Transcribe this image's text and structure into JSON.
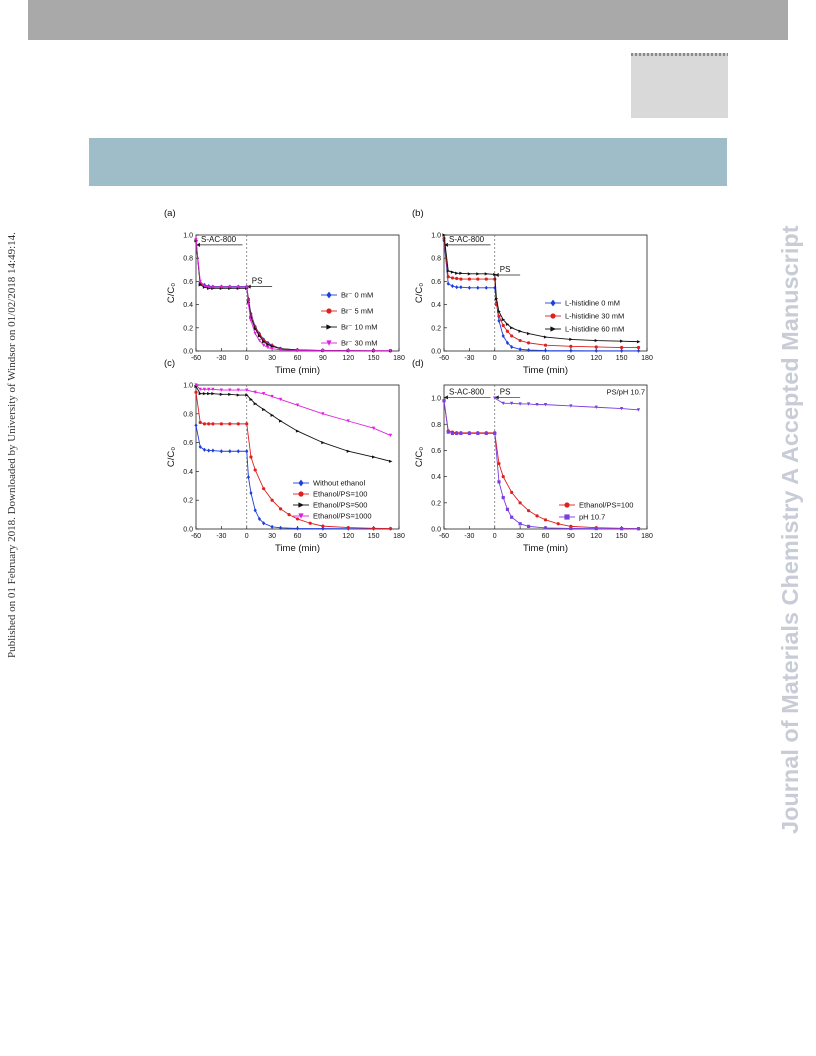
{
  "side_text": "Published on 01 February 2018. Downloaded by University of Windsor on 01/02/2018 14:49:14.",
  "watermark": "Journal of Materials Chemistry A Accepted Manuscript",
  "chart_data": [
    {
      "type": "line",
      "panel_label": "(a)",
      "xlabel": "Time (min)",
      "ylabel": "C/C₀",
      "xlim": [
        -60,
        180
      ],
      "ylim": [
        0,
        1.0
      ],
      "xticks": [
        -60,
        -30,
        0,
        30,
        60,
        90,
        120,
        150,
        180
      ],
      "yticks": [
        0.0,
        0.2,
        0.4,
        0.6,
        0.8,
        1.0
      ],
      "annotations": [
        {
          "text": "S-AC-800",
          "x1": -60,
          "x2": -5,
          "y": 0.915
        },
        {
          "text": "PS",
          "x1": 0,
          "x2": 30,
          "y": 0.555
        }
      ],
      "legend_position": "right",
      "series": [
        {
          "name": "Br⁻ 0 mM",
          "color": "#1f3fd9",
          "marker": "diamond",
          "x": [
            -60,
            -55,
            -50,
            -45,
            -40,
            -30,
            -20,
            -10,
            0,
            2,
            5,
            10,
            15,
            20,
            25,
            30,
            40,
            60,
            90,
            120,
            150,
            170
          ],
          "y": [
            0.95,
            0.59,
            0.57,
            0.56,
            0.555,
            0.555,
            0.555,
            0.555,
            0.555,
            0.45,
            0.32,
            0.21,
            0.15,
            0.1,
            0.07,
            0.05,
            0.02,
            0.01,
            0.005,
            0.003,
            0.002,
            0.002
          ]
        },
        {
          "name": "Br⁻ 5 mM",
          "color": "#e02020",
          "marker": "circle",
          "x": [
            -60,
            -55,
            -50,
            -45,
            -40,
            -30,
            -20,
            -10,
            0,
            2,
            5,
            10,
            15,
            20,
            25,
            30,
            40,
            60,
            90,
            120,
            150,
            170
          ],
          "y": [
            0.95,
            0.58,
            0.56,
            0.55,
            0.55,
            0.55,
            0.55,
            0.55,
            0.55,
            0.44,
            0.3,
            0.2,
            0.14,
            0.09,
            0.06,
            0.045,
            0.02,
            0.008,
            0.004,
            0.003,
            0.002,
            0.002
          ]
        },
        {
          "name": "Br⁻ 10 mM",
          "color": "#111111",
          "marker": "triangle-right",
          "x": [
            -60,
            -55,
            -50,
            -45,
            -40,
            -30,
            -20,
            -10,
            0,
            2,
            5,
            10,
            15,
            20,
            25,
            30,
            40,
            60,
            90,
            120,
            150,
            170
          ],
          "y": [
            0.95,
            0.57,
            0.55,
            0.54,
            0.54,
            0.54,
            0.54,
            0.54,
            0.54,
            0.42,
            0.29,
            0.19,
            0.13,
            0.08,
            0.055,
            0.04,
            0.02,
            0.008,
            0.004,
            0.003,
            0.002,
            0.002
          ]
        },
        {
          "name": "Br⁻ 30 mM",
          "color": "#e020e0",
          "marker": "triangle-down",
          "x": [
            -60,
            -55,
            -50,
            -45,
            -40,
            -30,
            -20,
            -10,
            0,
            2,
            5,
            10,
            15,
            20,
            25,
            30,
            40,
            60,
            90,
            120,
            150,
            170
          ],
          "y": [
            0.96,
            0.6,
            0.56,
            0.55,
            0.55,
            0.55,
            0.55,
            0.55,
            0.55,
            0.4,
            0.26,
            0.15,
            0.09,
            0.05,
            0.03,
            0.02,
            0.01,
            0.005,
            0.003,
            0.002,
            0.002,
            0.002
          ]
        }
      ]
    },
    {
      "type": "line",
      "panel_label": "(b)",
      "xlabel": "Time (min)",
      "ylabel": "C/C₀",
      "xlim": [
        -60,
        180
      ],
      "ylim": [
        0,
        1.0
      ],
      "xticks": [
        -60,
        -30,
        0,
        30,
        60,
        90,
        120,
        150,
        180
      ],
      "yticks": [
        0.0,
        0.2,
        0.4,
        0.6,
        0.8,
        1.0
      ],
      "annotations": [
        {
          "text": "S-AC-800",
          "x1": -60,
          "x2": -5,
          "y": 0.915
        },
        {
          "text": "PS",
          "x1": 0,
          "x2": 30,
          "y": 0.655
        }
      ],
      "legend_position": "bottom-right",
      "series": [
        {
          "name": "L-histidine 0 mM",
          "color": "#1f3fd9",
          "marker": "diamond",
          "x": [
            -60,
            -55,
            -50,
            -45,
            -40,
            -30,
            -20,
            -10,
            0,
            2,
            5,
            10,
            15,
            20,
            30,
            40,
            60,
            90,
            120,
            150,
            170
          ],
          "y": [
            0.95,
            0.58,
            0.56,
            0.55,
            0.55,
            0.545,
            0.545,
            0.545,
            0.545,
            0.42,
            0.26,
            0.13,
            0.07,
            0.035,
            0.015,
            0.008,
            0.004,
            0.003,
            0.002,
            0.002,
            0.002
          ]
        },
        {
          "name": "L-histidine 30 mM",
          "color": "#e02020",
          "marker": "circle",
          "x": [
            -60,
            -55,
            -50,
            -45,
            -40,
            -30,
            -20,
            -10,
            0,
            2,
            5,
            10,
            15,
            20,
            30,
            40,
            60,
            90,
            120,
            150,
            170
          ],
          "y": [
            0.97,
            0.64,
            0.63,
            0.625,
            0.62,
            0.62,
            0.62,
            0.62,
            0.62,
            0.4,
            0.3,
            0.22,
            0.17,
            0.13,
            0.09,
            0.07,
            0.05,
            0.04,
            0.035,
            0.03,
            0.03
          ]
        },
        {
          "name": "L-histidine 60 mM",
          "color": "#111111",
          "marker": "triangle-right",
          "x": [
            -60,
            -55,
            -50,
            -45,
            -40,
            -30,
            -20,
            -10,
            0,
            2,
            5,
            10,
            15,
            20,
            30,
            40,
            60,
            90,
            120,
            150,
            170
          ],
          "y": [
            1.0,
            0.69,
            0.68,
            0.67,
            0.67,
            0.665,
            0.665,
            0.665,
            0.66,
            0.45,
            0.34,
            0.27,
            0.23,
            0.2,
            0.17,
            0.15,
            0.12,
            0.1,
            0.09,
            0.085,
            0.08
          ]
        }
      ]
    },
    {
      "type": "line",
      "panel_label": "(c)",
      "xlabel": "Time (min)",
      "ylabel": "C/C₀",
      "xlim": [
        -60,
        180
      ],
      "ylim": [
        0,
        1.0
      ],
      "xticks": [
        -60,
        -30,
        0,
        30,
        60,
        90,
        120,
        150,
        180
      ],
      "yticks": [
        0.0,
        0.2,
        0.4,
        0.6,
        0.8,
        1.0
      ],
      "annotations": [],
      "legend_position": "bottom-right",
      "series": [
        {
          "name": "Without ethanol",
          "color": "#1f3fd9",
          "marker": "diamond",
          "x": [
            -60,
            -55,
            -50,
            -45,
            -40,
            -30,
            -20,
            -10,
            0,
            2,
            5,
            10,
            15,
            20,
            30,
            40,
            60,
            90,
            120,
            150,
            170
          ],
          "y": [
            0.72,
            0.57,
            0.55,
            0.545,
            0.545,
            0.54,
            0.54,
            0.54,
            0.54,
            0.36,
            0.25,
            0.13,
            0.07,
            0.04,
            0.015,
            0.008,
            0.004,
            0.003,
            0.002,
            0.002,
            0.002
          ]
        },
        {
          "name": "Ethanol/PS=100",
          "color": "#e02020",
          "marker": "circle",
          "x": [
            -60,
            -55,
            -50,
            -45,
            -40,
            -30,
            -20,
            -10,
            0,
            5,
            10,
            20,
            30,
            40,
            50,
            60,
            75,
            90,
            120,
            150,
            170
          ],
          "y": [
            0.95,
            0.74,
            0.73,
            0.73,
            0.73,
            0.73,
            0.73,
            0.73,
            0.73,
            0.5,
            0.41,
            0.28,
            0.2,
            0.14,
            0.1,
            0.07,
            0.04,
            0.02,
            0.01,
            0.005,
            0.003
          ]
        },
        {
          "name": "Ethanol/PS=500",
          "color": "#111111",
          "marker": "triangle-right",
          "x": [
            -60,
            -55,
            -50,
            -45,
            -40,
            -30,
            -20,
            -10,
            0,
            5,
            10,
            20,
            30,
            40,
            60,
            90,
            120,
            150,
            170
          ],
          "y": [
            0.99,
            0.94,
            0.94,
            0.94,
            0.94,
            0.935,
            0.935,
            0.93,
            0.93,
            0.9,
            0.87,
            0.83,
            0.79,
            0.75,
            0.68,
            0.6,
            0.54,
            0.5,
            0.47
          ]
        },
        {
          "name": "Ethanol/PS=1000",
          "color": "#e020e0",
          "marker": "triangle-down",
          "x": [
            -60,
            -55,
            -50,
            -45,
            -40,
            -30,
            -20,
            -10,
            0,
            10,
            20,
            30,
            40,
            60,
            90,
            120,
            150,
            170
          ],
          "y": [
            1.0,
            0.97,
            0.97,
            0.97,
            0.97,
            0.965,
            0.965,
            0.965,
            0.965,
            0.95,
            0.94,
            0.92,
            0.9,
            0.86,
            0.8,
            0.75,
            0.7,
            0.65
          ]
        }
      ]
    },
    {
      "type": "line",
      "panel_label": "(d)",
      "xlabel": "Time (min)",
      "ylabel": "C/C₀",
      "xlim": [
        -60,
        180
      ],
      "ylim": [
        0,
        1.1
      ],
      "xticks": [
        -60,
        -30,
        0,
        30,
        60,
        90,
        120,
        150,
        180
      ],
      "yticks": [
        0.0,
        0.2,
        0.4,
        0.6,
        0.8,
        1.0
      ],
      "annotations": [
        {
          "text": "S-AC-800",
          "x1": -60,
          "x2": -5,
          "y": 1.005
        },
        {
          "text": "PS",
          "x1": 0,
          "x2": 30,
          "y": 1.005
        },
        {
          "text": "PS/pH 10.7",
          "at_x": 155,
          "at_y": 0.99
        }
      ],
      "legend_position": "bottom-right",
      "series": [
        {
          "name": "Ethanol/PS=100",
          "color": "#e02020",
          "marker": "circle",
          "x": [
            -60,
            -55,
            -50,
            -45,
            -40,
            -30,
            -20,
            -10,
            0,
            5,
            10,
            20,
            30,
            40,
            50,
            60,
            75,
            90,
            120,
            150,
            170
          ],
          "y": [
            0.98,
            0.75,
            0.74,
            0.735,
            0.735,
            0.735,
            0.735,
            0.735,
            0.735,
            0.5,
            0.4,
            0.28,
            0.2,
            0.14,
            0.1,
            0.07,
            0.04,
            0.02,
            0.01,
            0.005,
            0.003
          ]
        },
        {
          "name": "pH 10.7",
          "color": "#7a3fe0",
          "marker": "square",
          "x": [
            -60,
            -55,
            -50,
            -45,
            -40,
            -30,
            -20,
            -10,
            0,
            5,
            10,
            15,
            20,
            30,
            40,
            60,
            90,
            120,
            150,
            170
          ],
          "y": [
            0.98,
            0.74,
            0.73,
            0.73,
            0.73,
            0.73,
            0.73,
            0.73,
            0.73,
            0.36,
            0.24,
            0.15,
            0.09,
            0.04,
            0.02,
            0.008,
            0.004,
            0.003,
            0.002,
            0.002
          ]
        },
        {
          "name": "PS/pH 10.7",
          "color": "#7a3fe0",
          "marker": "triangle-down",
          "legend": false,
          "x": [
            0,
            10,
            20,
            30,
            40,
            50,
            60,
            90,
            120,
            150,
            170
          ],
          "y": [
            1.0,
            0.96,
            0.96,
            0.955,
            0.955,
            0.95,
            0.95,
            0.94,
            0.93,
            0.92,
            0.91
          ]
        }
      ]
    }
  ]
}
